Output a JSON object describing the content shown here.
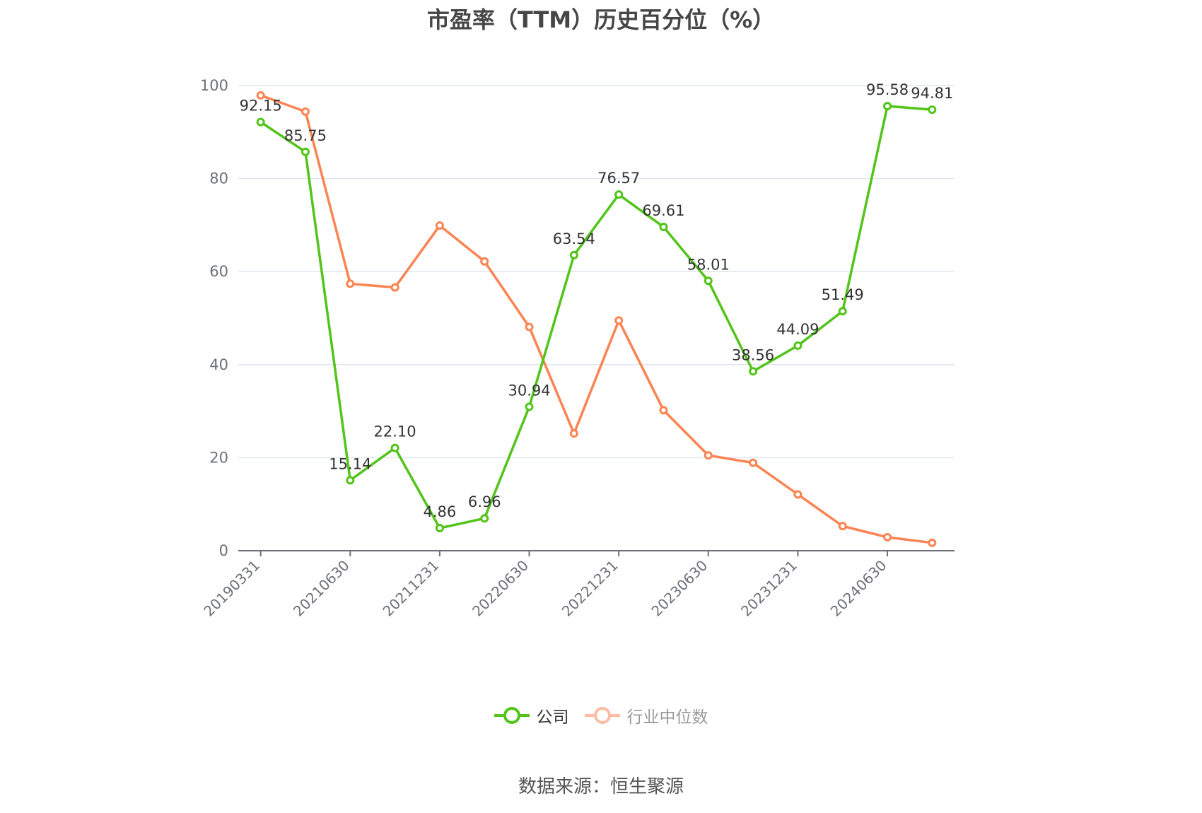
{
  "title": "市盈率（TTM）历史百分位（%）",
  "legend": {
    "items": [
      {
        "label": "公司",
        "color": "#52c41a",
        "state": "active"
      },
      {
        "label": "行业中位数",
        "color": "#fdbca3",
        "state": "dimmed"
      }
    ]
  },
  "source": "数据来源：恒生聚源",
  "colors": {
    "company": "#52c41a",
    "industry": "#fc8452",
    "grid": "#e0e6f1",
    "axis": "#6e7079"
  },
  "chart_data": {
    "type": "line",
    "title": "市盈率（TTM）历史百分位（%）",
    "xlabel": "",
    "ylabel": "",
    "ylim": [
      0,
      100
    ],
    "yticks": [
      0,
      20,
      40,
      60,
      80,
      100
    ],
    "grid": true,
    "legend_position": "bottom",
    "x_tick_labels_shown": [
      "20190331",
      "20210630",
      "20211231",
      "20220630",
      "20221231",
      "20230630",
      "20231231",
      "20240630"
    ],
    "categories": [
      "20190331",
      "c2",
      "20210630",
      "c4",
      "20211231",
      "c6",
      "20220630",
      "c8",
      "20221231",
      "c10",
      "20230630",
      "c12",
      "20231231",
      "c14",
      "20240630",
      "c16"
    ],
    "series": [
      {
        "name": "公司",
        "values": [
          92.15,
          85.75,
          15.14,
          22.1,
          4.86,
          6.96,
          30.94,
          63.54,
          76.57,
          69.61,
          58.01,
          38.56,
          44.09,
          51.49,
          95.58,
          94.81
        ],
        "labels": [
          "92.15",
          "85.75",
          "15.14",
          "22.10",
          "4.86",
          "6.96",
          "30.94",
          "63.54",
          "76.57",
          "69.61",
          "58.01",
          "38.56",
          "44.09",
          "51.49",
          "95.58",
          "94.81"
        ]
      },
      {
        "name": "行业中位数",
        "values": [
          97.9,
          94.4,
          57.4,
          56.6,
          69.9,
          62.2,
          48.1,
          25.2,
          49.5,
          30.2,
          20.5,
          18.9,
          12.1,
          5.3,
          2.9,
          1.7
        ]
      }
    ]
  }
}
